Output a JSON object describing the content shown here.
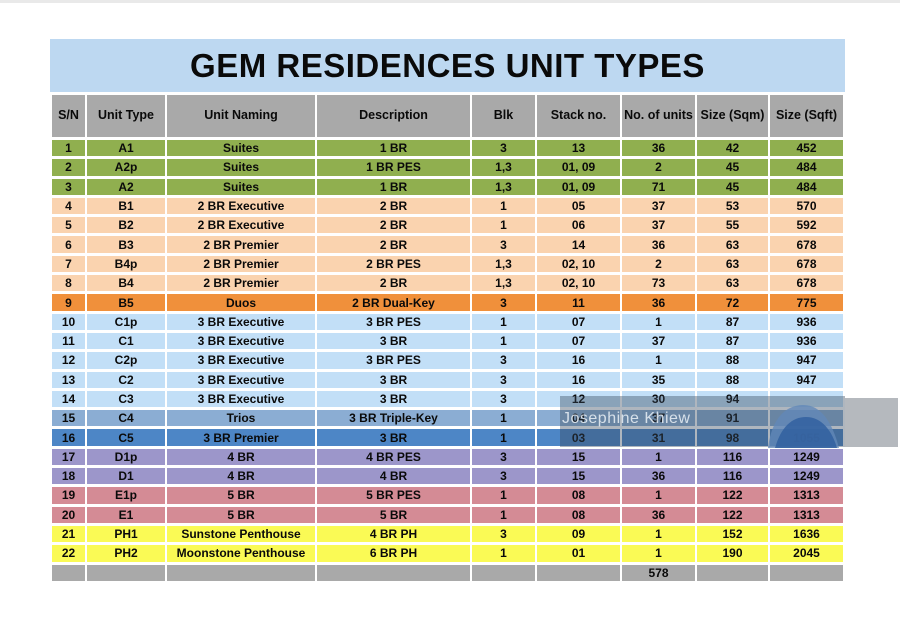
{
  "title": "GEM RESIDENCES UNIT TYPES",
  "table": {
    "columns": [
      "S/N",
      "Unit Type",
      "Unit Naming",
      "Description",
      "Blk",
      "Stack no.",
      "No. of units",
      "Size (Sqm)",
      "Size (Sqft)"
    ],
    "rows": [
      {
        "group": "green",
        "cells": [
          "1",
          "A1",
          "Suites",
          "1 BR",
          "3",
          "13",
          "36",
          "42",
          "452"
        ]
      },
      {
        "group": "green",
        "cells": [
          "2",
          "A2p",
          "Suites",
          "1 BR PES",
          "1,3",
          "01, 09",
          "2",
          "45",
          "484"
        ]
      },
      {
        "group": "green",
        "cells": [
          "3",
          "A2",
          "Suites",
          "1 BR",
          "1,3",
          "01, 09",
          "71",
          "45",
          "484"
        ]
      },
      {
        "group": "peach",
        "cells": [
          "4",
          "B1",
          "2 BR Executive",
          "2 BR",
          "1",
          "05",
          "37",
          "53",
          "570"
        ]
      },
      {
        "group": "peach",
        "cells": [
          "5",
          "B2",
          "2 BR Executive",
          "2 BR",
          "1",
          "06",
          "37",
          "55",
          "592"
        ]
      },
      {
        "group": "peach",
        "cells": [
          "6",
          "B3",
          "2 BR Premier",
          "2 BR",
          "3",
          "14",
          "36",
          "63",
          "678"
        ]
      },
      {
        "group": "peach",
        "cells": [
          "7",
          "B4p",
          "2 BR Premier",
          "2 BR PES",
          "1,3",
          "02, 10",
          "2",
          "63",
          "678"
        ]
      },
      {
        "group": "peach",
        "cells": [
          "8",
          "B4",
          "2 BR Premier",
          "2 BR",
          "1,3",
          "02, 10",
          "73",
          "63",
          "678"
        ]
      },
      {
        "group": "orange",
        "cells": [
          "9",
          "B5",
          "Duos",
          "2 BR Dual-Key",
          "3",
          "11",
          "36",
          "72",
          "775"
        ]
      },
      {
        "group": "lightblue",
        "cells": [
          "10",
          "C1p",
          "3 BR Executive",
          "3 BR PES",
          "1",
          "07",
          "1",
          "87",
          "936"
        ]
      },
      {
        "group": "lightblue",
        "cells": [
          "11",
          "C1",
          "3 BR Executive",
          "3 BR",
          "1",
          "07",
          "37",
          "87",
          "936"
        ]
      },
      {
        "group": "lightblue",
        "cells": [
          "12",
          "C2p",
          "3 BR Executive",
          "3 BR PES",
          "3",
          "16",
          "1",
          "88",
          "947"
        ]
      },
      {
        "group": "lightblue",
        "cells": [
          "13",
          "C2",
          "3 BR Executive",
          "3 BR",
          "3",
          "16",
          "35",
          "88",
          "947"
        ]
      },
      {
        "group": "lightblue",
        "cells": [
          "14",
          "C3",
          "3 BR Executive",
          "3 BR",
          "3",
          "12",
          "30",
          "94",
          ""
        ]
      },
      {
        "group": "midblue",
        "cells": [
          "15",
          "C4",
          "Trios",
          "3 BR Triple-Key",
          "1",
          "04",
          "37",
          "91",
          ""
        ]
      },
      {
        "group": "darkblue",
        "cells": [
          "16",
          "C5",
          "3 BR Premier",
          "3 BR",
          "1",
          "03",
          "31",
          "98",
          "1055"
        ]
      },
      {
        "group": "purple",
        "cells": [
          "17",
          "D1p",
          "4 BR",
          "4 BR PES",
          "3",
          "15",
          "1",
          "116",
          "1249"
        ]
      },
      {
        "group": "purple",
        "cells": [
          "18",
          "D1",
          "4 BR",
          "4 BR",
          "3",
          "15",
          "36",
          "116",
          "1249"
        ]
      },
      {
        "group": "pink",
        "cells": [
          "19",
          "E1p",
          "5 BR",
          "5 BR PES",
          "1",
          "08",
          "1",
          "122",
          "1313"
        ]
      },
      {
        "group": "pink",
        "cells": [
          "20",
          "E1",
          "5 BR",
          "5 BR",
          "1",
          "08",
          "36",
          "122",
          "1313"
        ]
      },
      {
        "group": "yellow",
        "cells": [
          "21",
          "PH1",
          "Sunstone Penthouse",
          "4 BR PH",
          "3",
          "09",
          "1",
          "152",
          "1636"
        ]
      },
      {
        "group": "yellow",
        "cells": [
          "22",
          "PH2",
          "Moonstone Penthouse",
          "6 BR PH",
          "1",
          "01",
          "1",
          "190",
          "2045"
        ]
      }
    ],
    "total_row": {
      "cells": [
        "",
        "",
        "",
        "",
        "",
        "",
        "578",
        "",
        ""
      ]
    },
    "total_units": "578"
  },
  "watermark": {
    "text": "Josephine Khiew"
  },
  "colors": {
    "title_bar_bg": "#BDD8F1",
    "header_bg": "#A9A9A9",
    "total_row_bg": "#A9A9A9",
    "row_groups": {
      "green": "#90AF4F",
      "peach": "#FAD3AF",
      "orange": "#F0903B",
      "lightblue": "#C2DFF7",
      "midblue": "#8BADD3",
      "darkblue": "#4D86C6",
      "purple": "#9C96CA",
      "pink": "#D48B95",
      "yellow": "#FAFA55"
    }
  }
}
